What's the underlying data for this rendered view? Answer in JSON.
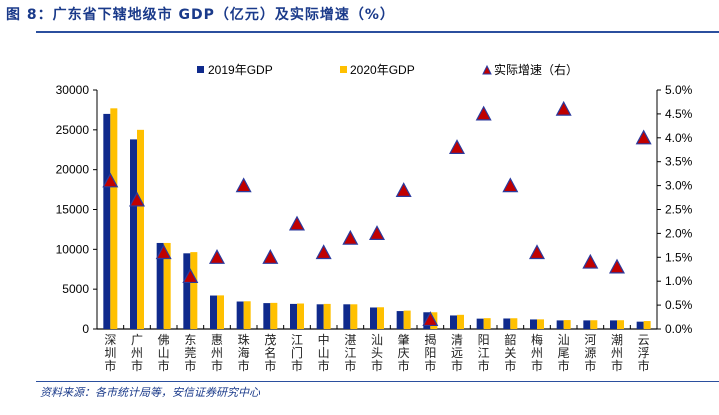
{
  "header": {
    "title": "图 8：广东省下辖地级市 GDP（亿元）及实际增速（%）"
  },
  "footer": {
    "source": "资料来源：各市统计局等，安信证券研究中心"
  },
  "colors": {
    "series_2019": "#0f2a8c",
    "series_2020": "#ffc000",
    "growth_marker_fill": "#c00000",
    "growth_marker_stroke": "#2b3a9e",
    "rule": "#2b4f9e"
  },
  "chart_data": {
    "type": "bar",
    "title": "广东省下辖地级市 GDP（亿元）及实际增速（%）",
    "categories": [
      "深圳市",
      "广州市",
      "佛山市",
      "东莞市",
      "惠州市",
      "珠海市",
      "茂名市",
      "江门市",
      "中山市",
      "湛江市",
      "汕头市",
      "肇庆市",
      "揭阳市",
      "清远市",
      "阳江市",
      "韶关市",
      "梅州市",
      "汕尾市",
      "河源市",
      "潮州市",
      "云浮市"
    ],
    "series": [
      {
        "name": "2019年GDP",
        "type": "bar",
        "axis": "left",
        "values": [
          27000,
          23800,
          10800,
          9500,
          4200,
          3450,
          3250,
          3150,
          3100,
          3100,
          2700,
          2250,
          2100,
          1700,
          1300,
          1320,
          1200,
          1080,
          1080,
          1080,
          920
        ]
      },
      {
        "name": "2020年GDP",
        "type": "bar",
        "axis": "left",
        "values": [
          27700,
          25000,
          10800,
          9650,
          4220,
          3480,
          3280,
          3200,
          3150,
          3100,
          2730,
          2310,
          2100,
          1780,
          1360,
          1350,
          1210,
          1120,
          1100,
          1100,
          1000
        ]
      },
      {
        "name": "实际增速（右）",
        "type": "scatter",
        "axis": "right",
        "marker": "triangle",
        "values": [
          3.1,
          2.7,
          1.6,
          1.1,
          1.5,
          3.0,
          1.5,
          2.2,
          1.6,
          1.9,
          2.0,
          2.9,
          0.2,
          3.8,
          4.5,
          3.0,
          1.6,
          4.6,
          1.4,
          1.3,
          4.0
        ]
      }
    ],
    "y_left": {
      "min": 0,
      "max": 30000,
      "step": 5000,
      "ticks": [
        "0",
        "5000",
        "10000",
        "15000",
        "20000",
        "25000",
        "30000"
      ]
    },
    "y_right": {
      "min": 0,
      "max": 5.0,
      "step": 0.5,
      "ticks": [
        "0.0%",
        "0.5%",
        "1.0%",
        "1.5%",
        "2.0%",
        "2.5%",
        "3.0%",
        "3.5%",
        "4.0%",
        "4.5%",
        "5.0%"
      ]
    },
    "xlabel": "",
    "ylabel": "",
    "grid": false,
    "legend": {
      "position": "top",
      "items": [
        "2019年GDP",
        "2020年GDP",
        "实际增速（右）"
      ]
    }
  }
}
